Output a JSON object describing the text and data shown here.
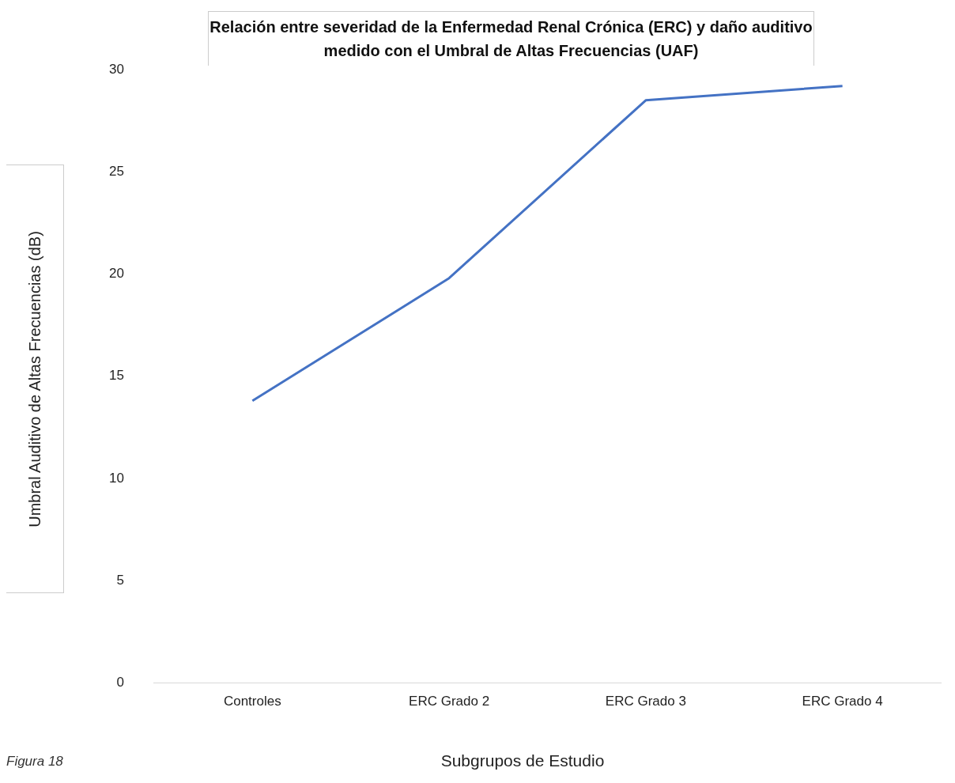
{
  "chart_data": {
    "type": "line",
    "title": "Relación entre severidad de la Enfermedad Renal Crónica (ERC) y daño auditivo medido con el Umbral de Altas Frecuencias (UAF)",
    "xlabel": "Subgrupos de Estudio",
    "ylabel": "Umbral Auditivo de Altas Frecuencias  (dB)",
    "annotations": [
      "Figura 18"
    ],
    "categories": [
      "Controles",
      "ERC Grado 2",
      "ERC Grado 3",
      "ERC Grado 4"
    ],
    "series": [
      {
        "color": "#4472c4",
        "values": [
          13.8,
          19.8,
          28.5,
          29.2
        ]
      }
    ],
    "ylim": [
      0,
      30
    ],
    "yticks": [
      0,
      5,
      10,
      15,
      20,
      25,
      30
    ],
    "grid": false,
    "legend": false,
    "marker": "none",
    "line_style": "solid"
  }
}
